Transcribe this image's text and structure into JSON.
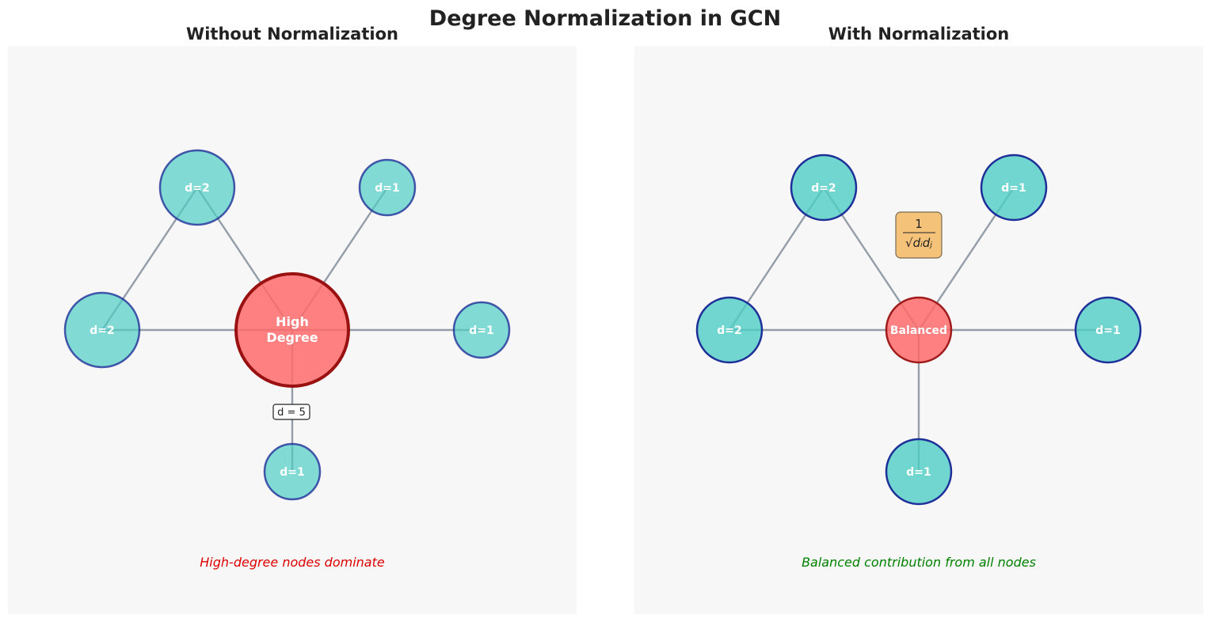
{
  "title": "Degree Normalization in GCN",
  "colors": {
    "panel_bg": "#f7f7f7",
    "leaf_fill": "#4ecdc4",
    "leaf_stroke": "#1f2f99",
    "hub_fill": "#ff6b6b",
    "hub_stroke_left": "#991111",
    "hub_stroke_right": "#a01c1c",
    "edge": "#8a94a0",
    "formula_bg": "#f5c27a",
    "caption_left": "#dd0000",
    "caption_right": "#008000"
  },
  "panels": {
    "left": {
      "title": "Without Normalization",
      "hub": {
        "label_line1": "High",
        "label_line2": "Degree"
      },
      "nodes": [
        {
          "label": "d=2"
        },
        {
          "label": "d=1"
        },
        {
          "label": "d=2"
        },
        {
          "label": "d=1"
        },
        {
          "label": "d=1"
        }
      ],
      "degree_label": "d = 5",
      "caption": "High-degree nodes dominate"
    },
    "right": {
      "title": "With Normalization",
      "hub": {
        "label": "Balanced"
      },
      "nodes": [
        {
          "label": "d=2"
        },
        {
          "label": "d=1"
        },
        {
          "label": "d=2"
        },
        {
          "label": "d=1"
        },
        {
          "label": "d=1"
        }
      ],
      "formula": {
        "numerator": "1",
        "denominator": "√dᵢdⱼ"
      },
      "caption": "Balanced contribution from all nodes"
    }
  }
}
